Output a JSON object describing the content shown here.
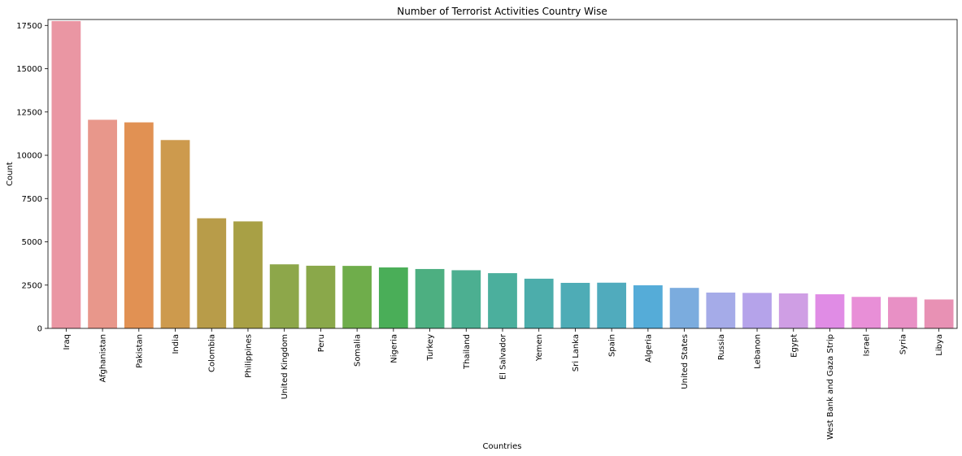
{
  "chart_data": {
    "type": "bar",
    "title": "Number of Terrorist Activities Country Wise",
    "xlabel": "Countries",
    "ylabel": "Count",
    "ylim": [
      0,
      17750
    ],
    "yticks": [
      0,
      2500,
      5000,
      7500,
      10000,
      12500,
      15000,
      17500
    ],
    "grid": false,
    "categories": [
      "Iraq",
      "Afghanistan",
      "Pakistan",
      "India",
      "Colombia",
      "Philippines",
      "United Kingdom",
      "Peru",
      "Somalia",
      "Nigeria",
      "Turkey",
      "Thailand",
      "El Salvador",
      "Yemen",
      "Sri Lanka",
      "Spain",
      "Algeria",
      "United States",
      "Russia",
      "Lebanon",
      "Egypt",
      "West Bank and Gaza Strip",
      "Israel",
      "Syria",
      "Libya"
    ],
    "values": [
      17750,
      12050,
      11900,
      10880,
      6360,
      6180,
      3700,
      3620,
      3610,
      3520,
      3430,
      3360,
      3190,
      2870,
      2630,
      2640,
      2490,
      2340,
      2070,
      2050,
      2020,
      1970,
      1820,
      1810,
      1670
    ],
    "colors": [
      "#ea96a3",
      "#e8978b",
      "#e19153",
      "#cd9a4d",
      "#b89c49",
      "#a8a045",
      "#8da74a",
      "#8aa84a",
      "#6fad4b",
      "#4aae58",
      "#4daf81",
      "#4caf91",
      "#4baf9d",
      "#4cadab",
      "#4eacb6",
      "#50abbd",
      "#55acd8",
      "#7bacde",
      "#a5abe8",
      "#b5a3ea",
      "#cf9ee4",
      "#e08ce5",
      "#e88fd7",
      "#e890c5",
      "#e891b4"
    ]
  }
}
